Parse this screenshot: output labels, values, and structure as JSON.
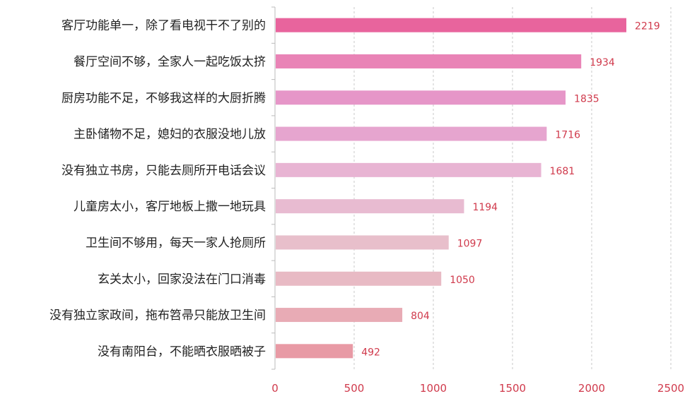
{
  "chart_data": {
    "type": "bar",
    "orientation": "horizontal",
    "categories": [
      "客厅功能单一，除了看电视干不了别的",
      "餐厅空间不够，全家人一起吃饭太挤",
      "厨房功能不足，不够我这样的大厨折腾",
      "主卧储物不足，媳妇的衣服没地儿放",
      "没有独立书房，只能去厕所开电话会议",
      "儿童房太小，客厅地板上撒一地玩具",
      "卫生间不够用，每天一家人抢厕所",
      "玄关太小，回家没法在门口消毒",
      "没有独立家政间，拖布笤帚只能放卫生间",
      "没有南阳台，不能晒衣服晒被子"
    ],
    "values": [
      2219,
      1934,
      1835,
      1716,
      1681,
      1194,
      1097,
      1050,
      804,
      492
    ],
    "value_labels": [
      "2219",
      "1934",
      "1835",
      "1716",
      "1681",
      "1194",
      "1097",
      "1050",
      "804",
      "492"
    ],
    "bar_colors": [
      "#e8649d",
      "#e983b6",
      "#e696c8",
      "#e6a5cf",
      "#e8b4d3",
      "#e8bbd1",
      "#e8bfcb",
      "#e8bac4",
      "#e8abb5",
      "#e89aa5"
    ],
    "xlim": [
      0,
      2500
    ],
    "xticks": [
      "0",
      "500",
      "1000",
      "1500",
      "2000",
      "2500"
    ],
    "xtick_values": [
      0,
      500,
      1000,
      1500,
      2000,
      2500
    ],
    "grid": "vertical dashed",
    "legend": "none",
    "title": "",
    "xlabel": "",
    "ylabel": ""
  }
}
